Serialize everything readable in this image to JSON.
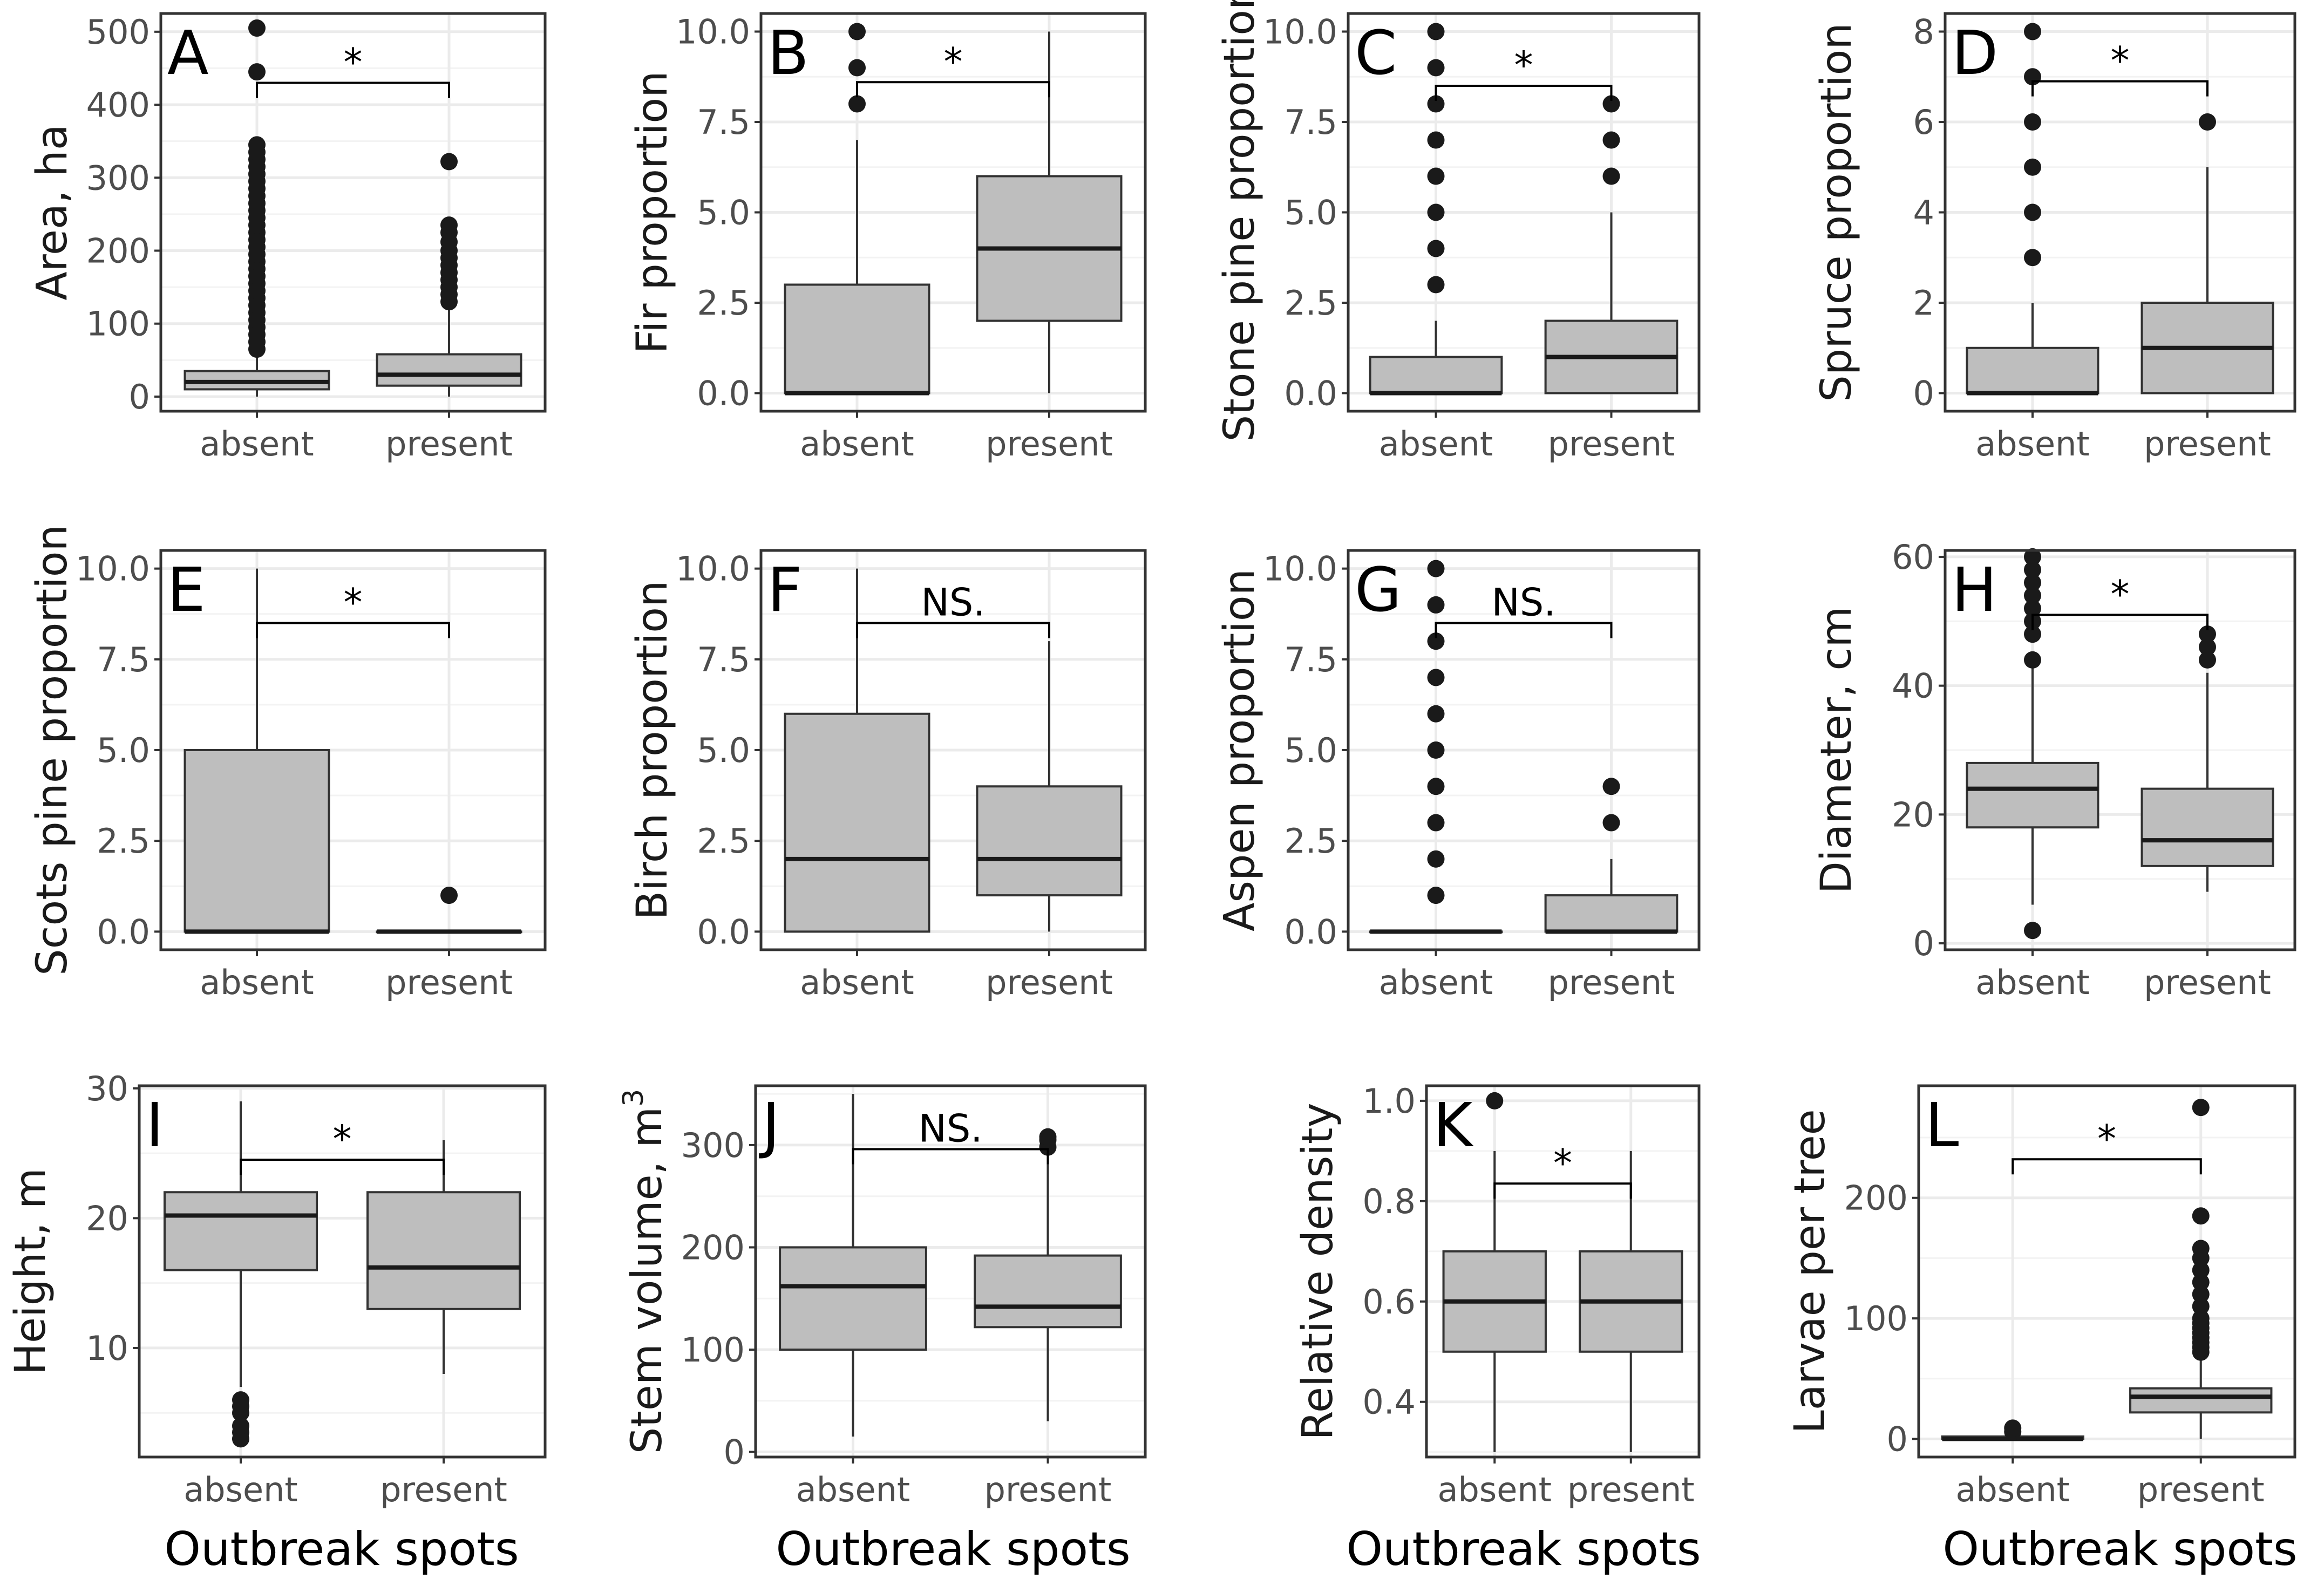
{
  "figure": {
    "x_axis_title": "Outbreak spots",
    "categories": [
      "absent",
      "present"
    ]
  },
  "colors": {
    "box_fill": "#bebebe",
    "box_stroke": "#333333",
    "grid_major": "#ebebeb",
    "panel_border": "#333333",
    "point": "#1a1a1a"
  },
  "chart_data": [
    {
      "type": "box",
      "panel": "A",
      "ylabel": "Area, ha",
      "categories": [
        "absent",
        "present"
      ],
      "ylim": [
        -20,
        525
      ],
      "yticks": [
        0,
        100,
        200,
        300,
        400,
        500
      ],
      "boxes": [
        {
          "category": "absent",
          "whisker_low": 0,
          "q1": 10,
          "median": 20,
          "q3": 35,
          "whisker_high": 60,
          "outliers": [
            65,
            75,
            85,
            95,
            105,
            115,
            125,
            135,
            145,
            155,
            165,
            175,
            185,
            195,
            205,
            215,
            225,
            235,
            245,
            255,
            265,
            275,
            285,
            295,
            305,
            315,
            325,
            335,
            345,
            445,
            505
          ]
        },
        {
          "category": "present",
          "whisker_low": 0,
          "q1": 15,
          "median": 30,
          "q3": 58,
          "whisker_high": 120,
          "outliers": [
            130,
            140,
            150,
            160,
            170,
            180,
            190,
            200,
            212,
            225,
            235,
            322
          ]
        }
      ],
      "significance": {
        "label": "*",
        "bracket_y": 430
      }
    },
    {
      "type": "box",
      "panel": "B",
      "ylabel": "Fir proportion",
      "categories": [
        "absent",
        "present"
      ],
      "ylim": [
        -0.5,
        10.5
      ],
      "yticks": [
        0.0,
        2.5,
        5.0,
        7.5,
        10.0
      ],
      "boxes": [
        {
          "category": "absent",
          "whisker_low": 0,
          "q1": 0,
          "median": 0,
          "q3": 3,
          "whisker_high": 7,
          "outliers": [
            8,
            9,
            10
          ]
        },
        {
          "category": "present",
          "whisker_low": 0,
          "q1": 2,
          "median": 4,
          "q3": 6,
          "whisker_high": 10,
          "outliers": []
        }
      ],
      "significance": {
        "label": "*",
        "bracket_y": 8.6
      }
    },
    {
      "type": "box",
      "panel": "C",
      "ylabel": "Stone pine proportion",
      "categories": [
        "absent",
        "present"
      ],
      "ylim": [
        -0.5,
        10.5
      ],
      "yticks": [
        0.0,
        2.5,
        5.0,
        7.5,
        10.0
      ],
      "boxes": [
        {
          "category": "absent",
          "whisker_low": 0,
          "q1": 0,
          "median": 0,
          "q3": 1,
          "whisker_high": 2,
          "outliers": [
            3,
            4,
            5,
            6,
            7,
            8,
            9,
            10
          ]
        },
        {
          "category": "present",
          "whisker_low": 0,
          "q1": 0,
          "median": 1,
          "q3": 2,
          "whisker_high": 5,
          "outliers": [
            6,
            7,
            8
          ]
        }
      ],
      "significance": {
        "label": "*",
        "bracket_y": 8.5
      }
    },
    {
      "type": "box",
      "panel": "D",
      "ylabel": "Spruce proportion",
      "categories": [
        "absent",
        "present"
      ],
      "ylim": [
        -0.4,
        8.4
      ],
      "yticks": [
        0,
        2,
        4,
        6,
        8
      ],
      "boxes": [
        {
          "category": "absent",
          "whisker_low": 0,
          "q1": 0,
          "median": 0,
          "q3": 1,
          "whisker_high": 2,
          "outliers": [
            3,
            4,
            5,
            6,
            7,
            8
          ]
        },
        {
          "category": "present",
          "whisker_low": 0,
          "q1": 0,
          "median": 1,
          "q3": 2,
          "whisker_high": 5,
          "outliers": [
            6
          ]
        }
      ],
      "significance": {
        "label": "*",
        "bracket_y": 6.9
      }
    },
    {
      "type": "box",
      "panel": "E",
      "ylabel": "Scots pine proportion",
      "categories": [
        "absent",
        "present"
      ],
      "ylim": [
        -0.5,
        10.5
      ],
      "yticks": [
        0.0,
        2.5,
        5.0,
        7.5,
        10.0
      ],
      "boxes": [
        {
          "category": "absent",
          "whisker_low": 0,
          "q1": 0,
          "median": 0,
          "q3": 5,
          "whisker_high": 10,
          "outliers": []
        },
        {
          "category": "present",
          "whisker_low": 0,
          "q1": 0,
          "median": 0,
          "q3": 0,
          "whisker_high": 0,
          "outliers": [
            1
          ]
        }
      ],
      "significance": {
        "label": "*",
        "bracket_y": 8.5
      }
    },
    {
      "type": "box",
      "panel": "F",
      "ylabel": "Birch proportion",
      "categories": [
        "absent",
        "present"
      ],
      "ylim": [
        -0.5,
        10.5
      ],
      "yticks": [
        0.0,
        2.5,
        5.0,
        7.5,
        10.0
      ],
      "boxes": [
        {
          "category": "absent",
          "whisker_low": 0,
          "q1": 0,
          "median": 2,
          "q3": 6,
          "whisker_high": 10,
          "outliers": []
        },
        {
          "category": "present",
          "whisker_low": 0,
          "q1": 1,
          "median": 2,
          "q3": 4,
          "whisker_high": 8,
          "outliers": []
        }
      ],
      "significance": {
        "label": "NS.",
        "bracket_y": 8.5
      }
    },
    {
      "type": "box",
      "panel": "G",
      "ylabel": "Aspen proportion",
      "categories": [
        "absent",
        "present"
      ],
      "ylim": [
        -0.5,
        10.5
      ],
      "yticks": [
        0.0,
        2.5,
        5.0,
        7.5,
        10.0
      ],
      "boxes": [
        {
          "category": "absent",
          "whisker_low": 0,
          "q1": 0,
          "median": 0,
          "q3": 0,
          "whisker_high": 0,
          "outliers": [
            1,
            2,
            3,
            4,
            5,
            6,
            7,
            8,
            9,
            10
          ]
        },
        {
          "category": "present",
          "whisker_low": 0,
          "q1": 0,
          "median": 0,
          "q3": 1,
          "whisker_high": 2,
          "outliers": [
            3,
            4
          ]
        }
      ],
      "significance": {
        "label": "NS.",
        "bracket_y": 8.5
      }
    },
    {
      "type": "box",
      "panel": "H",
      "ylabel": "Diameter, cm",
      "categories": [
        "absent",
        "present"
      ],
      "ylim": [
        -1,
        61
      ],
      "yticks": [
        0,
        20,
        40,
        60
      ],
      "boxes": [
        {
          "category": "absent",
          "whisker_low": 6,
          "q1": 18,
          "median": 24,
          "q3": 28,
          "whisker_high": 43,
          "outliers": [
            2,
            44,
            48,
            50,
            52,
            54,
            56,
            58,
            60
          ]
        },
        {
          "category": "present",
          "whisker_low": 8,
          "q1": 12,
          "median": 16,
          "q3": 24,
          "whisker_high": 42,
          "outliers": [
            44,
            46,
            48
          ]
        }
      ],
      "significance": {
        "label": "*",
        "bracket_y": 51
      }
    },
    {
      "type": "box",
      "panel": "I",
      "ylabel": "Height, m",
      "categories": [
        "absent",
        "present"
      ],
      "ylim": [
        1.6,
        30.2
      ],
      "yticks": [
        10,
        20,
        30
      ],
      "boxes": [
        {
          "category": "absent",
          "whisker_low": 7,
          "q1": 16,
          "median": 20.2,
          "q3": 22,
          "whisker_high": 29,
          "outliers": [
            3,
            3.5,
            4,
            5,
            5.5,
            6
          ]
        },
        {
          "category": "present",
          "whisker_low": 8,
          "q1": 13,
          "median": 16.2,
          "q3": 22,
          "whisker_high": 26,
          "outliers": []
        }
      ],
      "significance": {
        "label": "*",
        "bracket_y": 24.5
      }
    },
    {
      "type": "box",
      "panel": "J",
      "ylabel": "Stem volume, m",
      "ylabel_superscript": "3",
      "categories": [
        "absent",
        "present"
      ],
      "ylim": [
        -5,
        358
      ],
      "yticks": [
        0,
        100,
        200,
        300
      ],
      "boxes": [
        {
          "category": "absent",
          "whisker_low": 15,
          "q1": 100,
          "median": 162,
          "q3": 200,
          "whisker_high": 350,
          "outliers": []
        },
        {
          "category": "present",
          "whisker_low": 30,
          "q1": 122,
          "median": 142,
          "q3": 192,
          "whisker_high": 290,
          "outliers": [
            298,
            305,
            308
          ]
        }
      ],
      "significance": {
        "label": "NS.",
        "bracket_y": 296
      }
    },
    {
      "type": "box",
      "panel": "K",
      "ylabel": "Relative density",
      "categories": [
        "absent",
        "present"
      ],
      "ylim": [
        0.29,
        1.03
      ],
      "yticks": [
        0.4,
        0.6,
        0.8,
        1.0
      ],
      "boxes": [
        {
          "category": "absent",
          "whisker_low": 0.3,
          "q1": 0.5,
          "median": 0.6,
          "q3": 0.7,
          "whisker_high": 0.9,
          "outliers": [
            1.0
          ]
        },
        {
          "category": "present",
          "whisker_low": 0.3,
          "q1": 0.5,
          "median": 0.6,
          "q3": 0.7,
          "whisker_high": 0.9,
          "outliers": []
        }
      ],
      "significance": {
        "label": "*",
        "bracket_y": 0.835
      }
    },
    {
      "type": "box",
      "panel": "L",
      "ylabel": "Larvae per tree",
      "categories": [
        "absent",
        "present"
      ],
      "ylim": [
        -15,
        293
      ],
      "yticks": [
        0,
        100,
        200
      ],
      "boxes": [
        {
          "category": "absent",
          "whisker_low": 0,
          "q1": 0,
          "median": 0,
          "q3": 2,
          "whisker_high": 4,
          "outliers": [
            6,
            9
          ]
        },
        {
          "category": "present",
          "whisker_low": 0,
          "q1": 22,
          "median": 35,
          "q3": 42,
          "whisker_high": 70,
          "outliers": [
            72,
            76,
            80,
            84,
            88,
            92,
            96,
            100,
            110,
            120,
            130,
            140,
            150,
            158,
            185,
            275
          ]
        }
      ],
      "significance": {
        "label": "*",
        "bracket_y": 232
      }
    }
  ]
}
